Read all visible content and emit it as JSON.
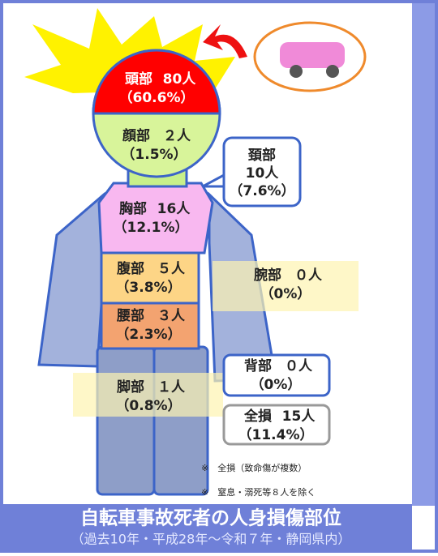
{
  "title": "自転車事故死者の人身損傷部位",
  "subtitle": "（過去10年・平成28年～令和７年・静岡県内）",
  "parts": [
    {
      "name": "頭部",
      "count": "80人",
      "percent": "（60.6%）"
    },
    {
      "name": "顔部",
      "count": "２人",
      "percent": "（1.5%）"
    },
    {
      "name": "頚部",
      "count": "10人",
      "percent": "（7.6%）"
    },
    {
      "name": "胸部",
      "count": "16人",
      "percent": "（12.1%）"
    },
    {
      "name": "腹部",
      "count": "５人",
      "percent": "（3.8%）"
    },
    {
      "name": "腕部",
      "count": "０人",
      "percent": "（0%）"
    },
    {
      "name": "腰部",
      "count": "３人",
      "percent": "（2.3%）"
    },
    {
      "name": "背部",
      "count": "０人",
      "percent": "（0%）"
    },
    {
      "name": "脚部",
      "count": "１人",
      "percent": "（0.8%）"
    },
    {
      "name": "全損",
      "count": "15人",
      "percent": "（11.4%）"
    }
  ],
  "notes": [
    "※　全損（致命傷が複数）",
    "※　窒息・溺死等８人を除く"
  ]
}
